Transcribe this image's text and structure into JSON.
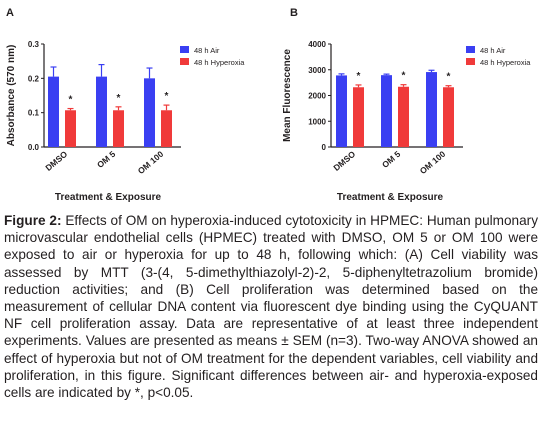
{
  "chart_data": [
    {
      "panel": "A",
      "type": "bar",
      "xlabel": "Treatment & Exposure",
      "ylabel": "Absorbance (570 nm)",
      "categories": [
        "DMSO",
        "OM 5",
        "OM 100"
      ],
      "ylim": [
        0,
        0.3
      ],
      "yticks": [
        "0.0",
        "0.1",
        "0.2",
        "0.3"
      ],
      "legend_position": "top-right",
      "significance_marker": "*",
      "series": [
        {
          "name": "48 h Air",
          "color": "#3a3ff2",
          "values": [
            0.205,
            0.205,
            0.2
          ],
          "errors": [
            0.028,
            0.035,
            0.03
          ]
        },
        {
          "name": "48 h Hyperoxia",
          "color": "#f03a3a",
          "values": [
            0.107,
            0.107,
            0.107
          ],
          "errors": [
            0.005,
            0.01,
            0.015
          ]
        }
      ]
    },
    {
      "panel": "B",
      "type": "bar",
      "xlabel": "Treatment & Exposure",
      "ylabel": "Mean Fluorescence",
      "categories": [
        "DMSO",
        "OM 5",
        "OM 100"
      ],
      "ylim": [
        0,
        4000
      ],
      "yticks": [
        "0",
        "1000",
        "2000",
        "3000",
        "4000"
      ],
      "legend_position": "top-right",
      "significance_marker": "*",
      "series": [
        {
          "name": "48 h Air",
          "color": "#3a3ff2",
          "values": [
            2780,
            2790,
            2910
          ],
          "errors": [
            60,
            40,
            70
          ]
        },
        {
          "name": "48 h Hyperoxia",
          "color": "#f03a3a",
          "values": [
            2320,
            2340,
            2320
          ],
          "errors": [
            90,
            80,
            60
          ]
        }
      ]
    }
  ],
  "caption": {
    "label": "Figure 2:",
    "text": "Effects of OM on hyperoxia-induced cytotoxicity in HPMEC: Human pulmonary microvascular endothelial cells (HPMEC) treated with DMSO, OM 5 or OM 100 were exposed to air or hyperoxia for up to 48 h, following which: (A) Cell viability was assessed by MTT (3-(4, 5-dimethylthiazolyl-2)-2, 5-diphenyltetrazolium bromide) reduction activities; and (B) Cell proliferation was determined based on the measurement of cellular DNA content via fluorescent dye binding using the CyQUANT NF cell proliferation assay. Data are representative of at least three independent experiments. Values are presented as means ± SEM (n=3). Two-way ANOVA showed an effect of hyperoxia but not of OM treatment for the dependent variables, cell viability and proliferation, in this figure. Significant differences between air- and hyperoxia-exposed cells are indicated by *, p<0.05."
  }
}
